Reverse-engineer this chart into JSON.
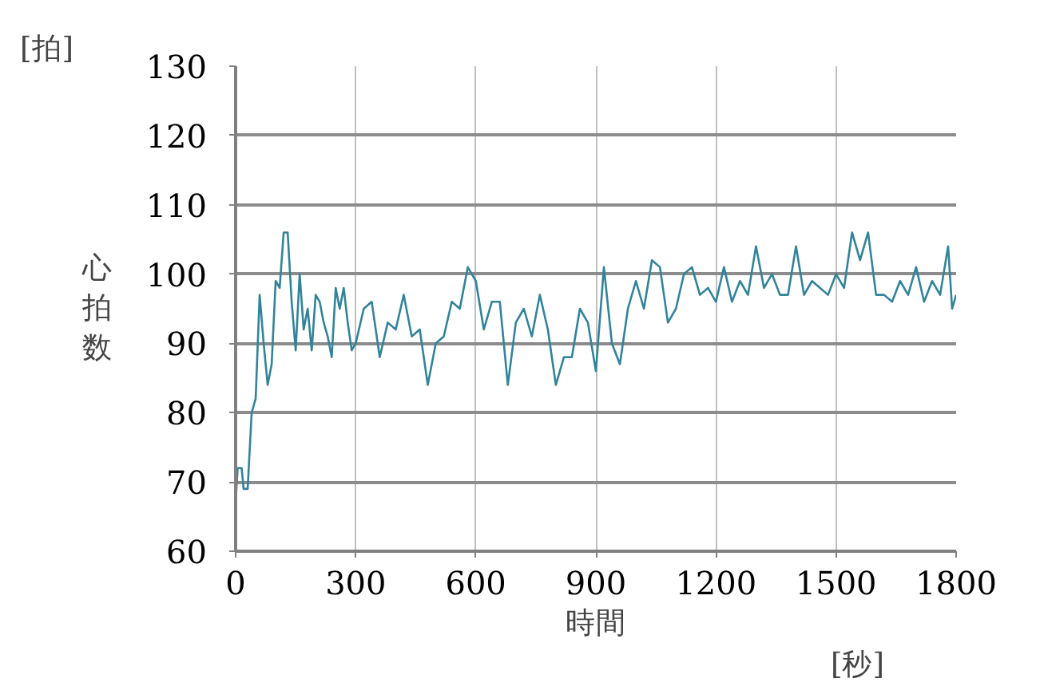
{
  "chart_data": {
    "type": "line",
    "xlabel": "時間",
    "ylabel": "心拍数",
    "annotations": [
      "[拍]",
      "[秒]"
    ],
    "x": [
      0,
      5,
      15,
      20,
      30,
      40,
      50,
      60,
      70,
      80,
      90,
      100,
      110,
      120,
      130,
      140,
      150,
      160,
      170,
      180,
      190,
      200,
      210,
      220,
      230,
      240,
      250,
      260,
      270,
      280,
      290,
      300,
      320,
      340,
      360,
      380,
      400,
      420,
      440,
      460,
      470,
      480,
      500,
      520,
      540,
      560,
      580,
      600,
      620,
      640,
      660,
      680,
      700,
      720,
      740,
      760,
      780,
      800,
      820,
      840,
      860,
      880,
      900,
      920,
      940,
      960,
      980,
      1000,
      1020,
      1040,
      1060,
      1080,
      1100,
      1120,
      1140,
      1160,
      1180,
      1200,
      1220,
      1240,
      1260,
      1280,
      1300,
      1320,
      1340,
      1360,
      1380,
      1400,
      1420,
      1440,
      1460,
      1480,
      1500,
      1520,
      1540,
      1560,
      1580,
      1600,
      1620,
      1640,
      1660,
      1680,
      1700,
      1720,
      1740,
      1760,
      1780,
      1790,
      1800
    ],
    "series": [
      {
        "color": "#31849b",
        "values": [
          67,
          72,
          72,
          69,
          69,
          80,
          82,
          97,
          90,
          84,
          87,
          99,
          98,
          106,
          106,
          96,
          89,
          100,
          92,
          95,
          89,
          97,
          96,
          93,
          91,
          88,
          98,
          95,
          98,
          93,
          89,
          90,
          95,
          96,
          88,
          93,
          92,
          97,
          91,
          92,
          88,
          84,
          90,
          91,
          96,
          95,
          101,
          99,
          92,
          96,
          96,
          84,
          93,
          95,
          91,
          97,
          92,
          84,
          88,
          88,
          95,
          93,
          86,
          101,
          90,
          87,
          95,
          99,
          95,
          102,
          101,
          93,
          95,
          100,
          101,
          97,
          98,
          96,
          101,
          96,
          99,
          97,
          104,
          98,
          100,
          97,
          97,
          104,
          97,
          99,
          98,
          97,
          100,
          98,
          106,
          102,
          106,
          97,
          97,
          96,
          99,
          97,
          101,
          96,
          99,
          97,
          104,
          95,
          97
        ]
      }
    ],
    "xlim": [
      0,
      1800
    ],
    "ylim": [
      60,
      130
    ],
    "xticks": [
      0,
      300,
      600,
      900,
      1200,
      1500,
      1800
    ],
    "yticks": [
      60,
      70,
      80,
      90,
      100,
      110,
      120,
      130
    ],
    "grid": true,
    "marker": "none",
    "line_style": "solid"
  }
}
